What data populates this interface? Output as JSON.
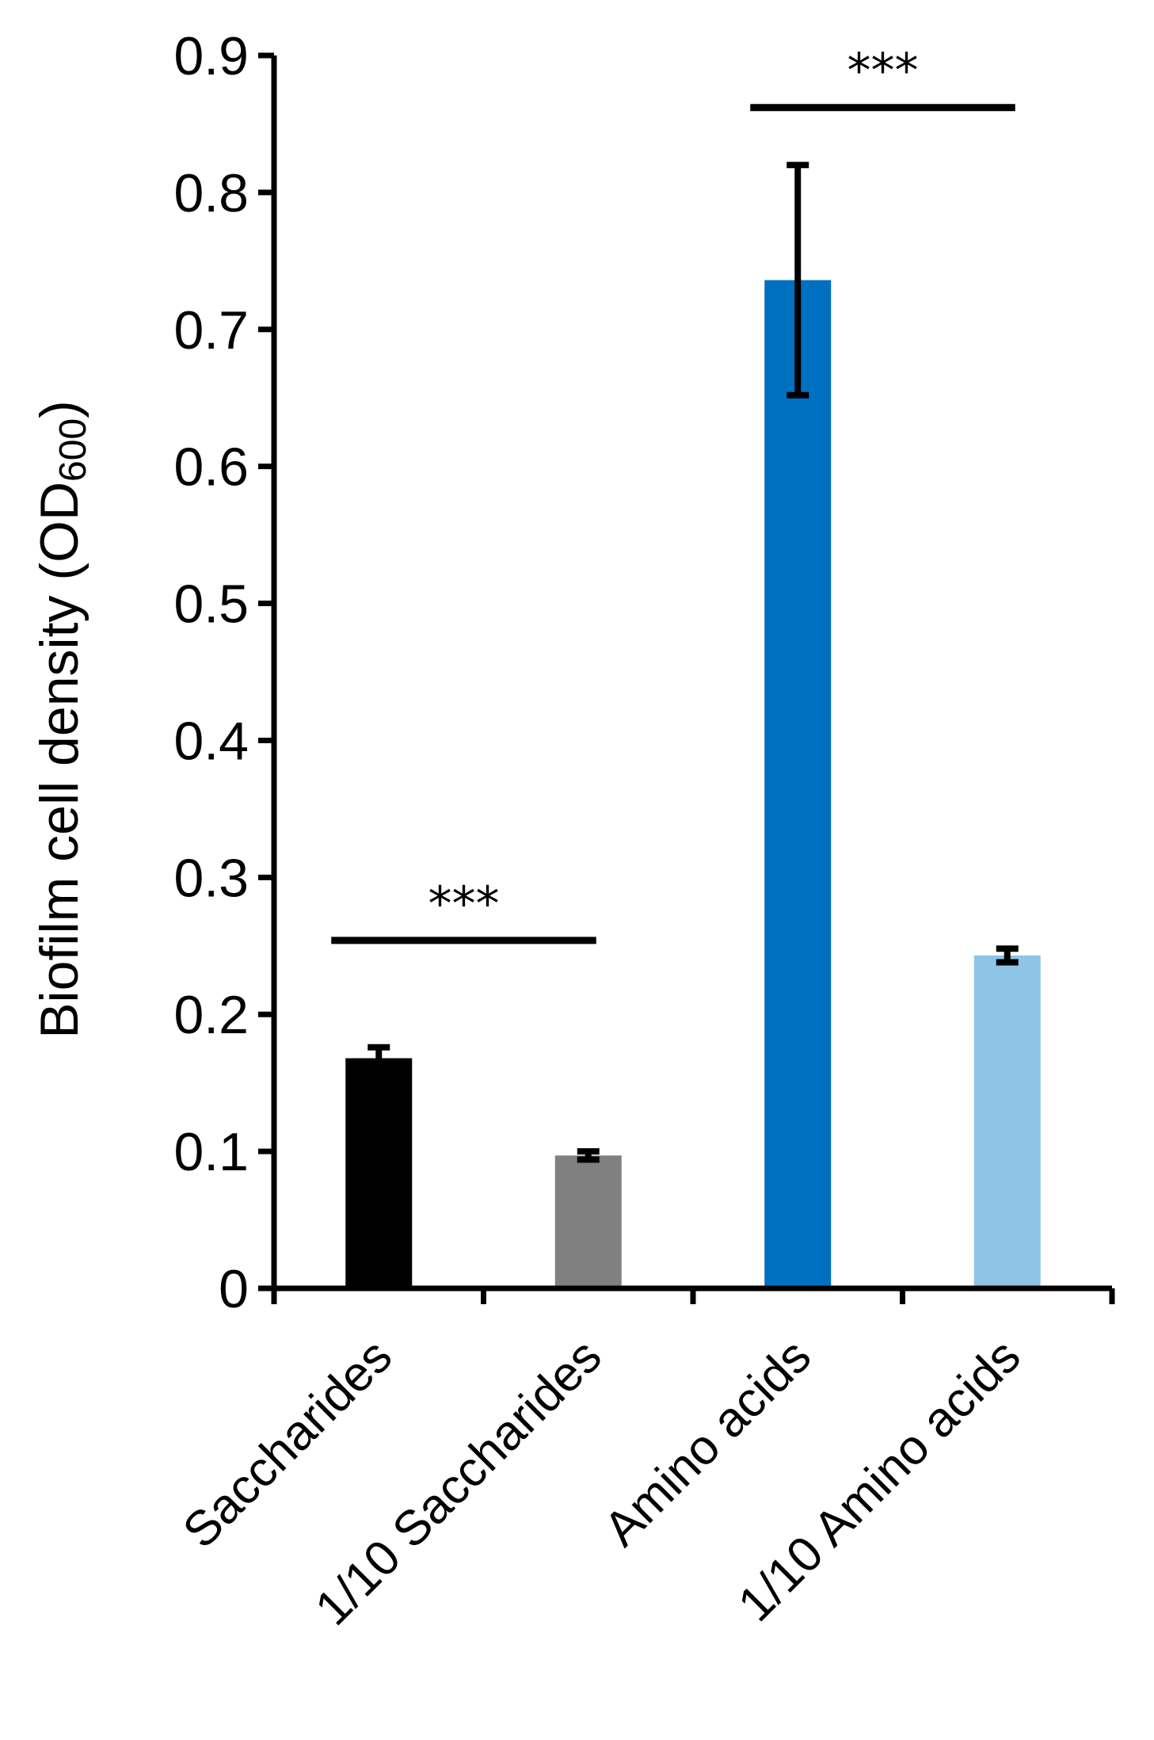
{
  "chart_data": {
    "type": "bar",
    "title": "",
    "xlabel": "",
    "ylabel": "Biofilm cell density (OD",
    "ylabel_subscript": "600",
    "ylabel_close": ")",
    "ylim": [
      0,
      0.9
    ],
    "yticks": [
      "0",
      "0.1",
      "0.2",
      "0.3",
      "0.4",
      "0.5",
      "0.6",
      "0.7",
      "0.8",
      "0.9"
    ],
    "categories": [
      "Saccharides",
      "1/10 Saccharides",
      "Amino acids",
      "1/10 Amino acids"
    ],
    "values": [
      0.168,
      0.097,
      0.736,
      0.243
    ],
    "errors": [
      0.008,
      0.003,
      0.084,
      0.005
    ],
    "colors": [
      "#000000",
      "#808080",
      "#0070C0",
      "#8EC4E6"
    ],
    "significance": [
      {
        "from": 0,
        "to": 1,
        "label": "***"
      },
      {
        "from": 2,
        "to": 3,
        "label": "***"
      }
    ],
    "grid": false,
    "legend": "none"
  }
}
